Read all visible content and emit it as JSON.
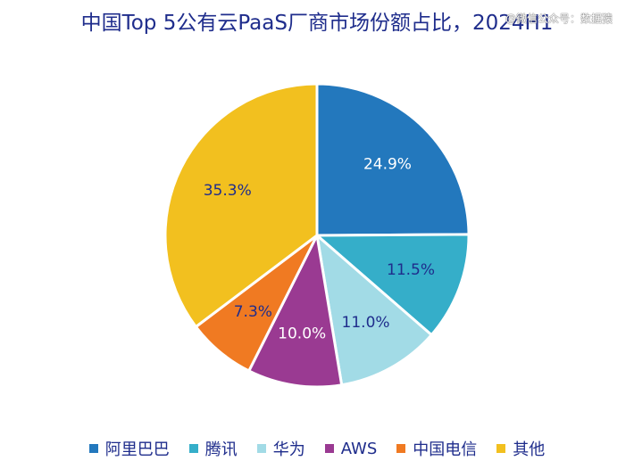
{
  "header": {
    "title": "中国Top 5公有云PaaS厂商市场份额占比，2024H1",
    "watermark": "@微信公众号：数据猿"
  },
  "chart_data": {
    "type": "pie",
    "title": "中国Top 5公有云PaaS厂商市场份额占比，2024H1",
    "categories": [
      "阿里巴巴",
      "腾讯",
      "华为",
      "AWS",
      "中国电信",
      "其他"
    ],
    "values": [
      24.9,
      11.5,
      11.0,
      10.0,
      7.3,
      35.3
    ],
    "labels": [
      "24.9%",
      "11.5%",
      "11.0%",
      "10.0%",
      "7.3%",
      "35.3%"
    ],
    "colors": [
      "#2378bd",
      "#35aec9",
      "#a2dbe6",
      "#9a3a92",
      "#f07a22",
      "#f2c01f"
    ],
    "label_colors": [
      "#ffffff",
      "#1f2d8c",
      "#1f2d8c",
      "#ffffff",
      "#1f2d8c",
      "#1f2d8c"
    ],
    "start_angle": "12 o'clock",
    "direction": "clockwise",
    "legend_position": "bottom"
  }
}
